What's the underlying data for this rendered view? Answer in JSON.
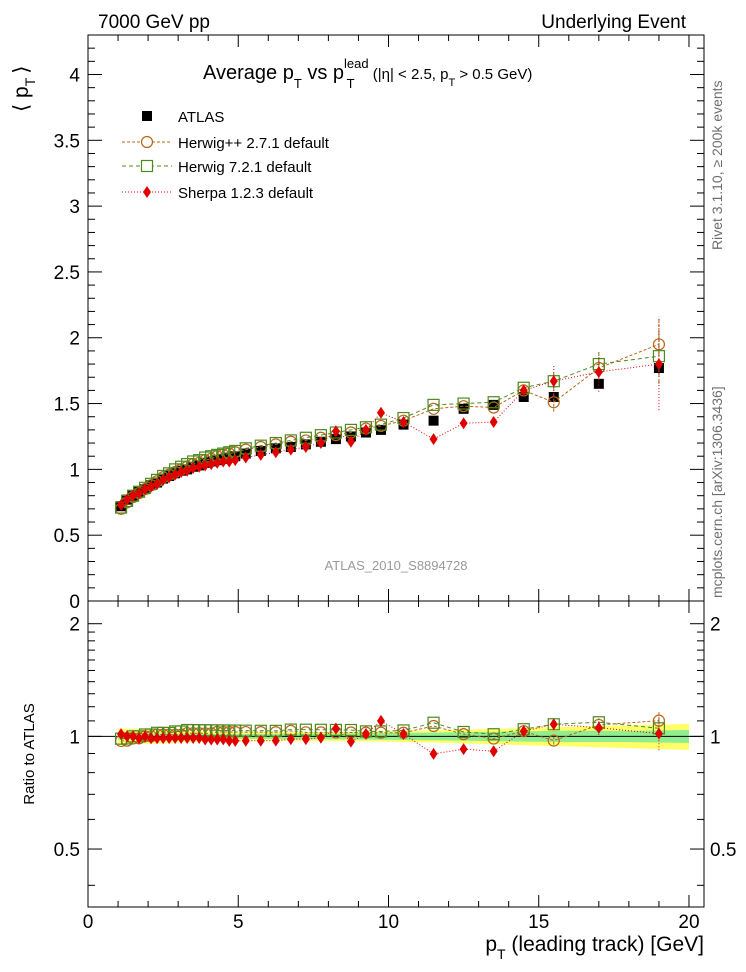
{
  "header": {
    "left": "7000 GeV pp",
    "right": "Underlying Event"
  },
  "side": {
    "rivet": "Rivet 3.1.10, ≥ 200k events",
    "mcplots": "mcplots.cern.ch [arXiv:1306.3436]"
  },
  "title": {
    "main": "Average p",
    "main_sub": "T",
    "vs": " vs p",
    "lead_sup": "lead",
    "lead_sub": "T",
    "cuts_a": " (|η| < 2.5, p",
    "cuts_sub": "T",
    "cuts_b": " > 0.5 GeV)"
  },
  "ylabel_main": {
    "left": "⟨ p",
    "sub": "T",
    "right": "⟩"
  },
  "ylabel_ratio": "Ratio to ATLAS",
  "xlabel": {
    "p": "p",
    "sub": "T",
    "rest": " (leading track) [GeV]"
  },
  "watermark": "ATLAS_2010_S8894728",
  "legend": [
    {
      "label": "ATLAS"
    },
    {
      "label": "Herwig++ 2.7.1 default"
    },
    {
      "label": "Herwig 7.2.1 default"
    },
    {
      "label": "Sherpa 1.2.3 default"
    }
  ],
  "colors": {
    "atlas": "#000000",
    "herwigpp": "#b8651a",
    "herwig7": "#4e8a1e",
    "sherpa": "#e00000",
    "band_inner": "#90ee90",
    "band_outer": "#ffff66"
  },
  "chart_data": [
    {
      "type": "scatter",
      "panel": "main",
      "title": "Average pT vs pT lead (|η| < 2.5, pT > 0.5 GeV)",
      "xlabel": "pT (leading track) [GeV]",
      "ylabel": "⟨ pT ⟩",
      "xlim": [
        0,
        20.5
      ],
      "ylim": [
        0,
        4.3
      ],
      "x_ticks": [
        0,
        5,
        10,
        15,
        20
      ],
      "y_ticks": [
        0,
        0.5,
        1,
        1.5,
        2,
        2.5,
        3,
        3.5,
        4
      ],
      "y_tick_labels": [
        "0",
        "0.5",
        "1",
        "1.5",
        "2",
        "2.5",
        "3",
        "3.5",
        "4"
      ],
      "x": [
        1.1,
        1.3,
        1.5,
        1.7,
        1.9,
        2.1,
        2.3,
        2.5,
        2.7,
        2.9,
        3.1,
        3.3,
        3.5,
        3.7,
        3.9,
        4.1,
        4.3,
        4.5,
        4.7,
        4.9,
        5.25,
        5.75,
        6.25,
        6.75,
        7.25,
        7.75,
        8.25,
        8.75,
        9.25,
        9.75,
        10.5,
        11.5,
        12.5,
        13.5,
        14.5,
        15.5,
        17.0,
        19.0
      ],
      "series": [
        {
          "name": "ATLAS",
          "values": [
            0.72,
            0.77,
            0.8,
            0.83,
            0.85,
            0.88,
            0.9,
            0.93,
            0.95,
            0.97,
            0.99,
            1.0,
            1.02,
            1.03,
            1.05,
            1.06,
            1.07,
            1.08,
            1.09,
            1.1,
            1.12,
            1.14,
            1.16,
            1.17,
            1.19,
            1.21,
            1.23,
            1.25,
            1.28,
            1.3,
            1.34,
            1.37,
            1.46,
            1.49,
            1.55,
            1.55,
            1.65,
            1.77
          ]
        },
        {
          "name": "Herwig++ 2.7.1 default",
          "values": [
            0.7,
            0.75,
            0.79,
            0.82,
            0.85,
            0.88,
            0.91,
            0.94,
            0.96,
            0.98,
            1.0,
            1.02,
            1.04,
            1.05,
            1.07,
            1.08,
            1.1,
            1.11,
            1.12,
            1.13,
            1.15,
            1.17,
            1.19,
            1.21,
            1.22,
            1.24,
            1.26,
            1.28,
            1.31,
            1.33,
            1.37,
            1.46,
            1.48,
            1.47,
            1.6,
            1.51,
            1.77,
            1.95
          ]
        },
        {
          "name": "Herwig 7.2.1 default",
          "values": [
            0.71,
            0.76,
            0.8,
            0.83,
            0.86,
            0.89,
            0.92,
            0.95,
            0.97,
            1.0,
            1.02,
            1.04,
            1.06,
            1.07,
            1.09,
            1.1,
            1.11,
            1.12,
            1.13,
            1.14,
            1.16,
            1.18,
            1.2,
            1.22,
            1.24,
            1.26,
            1.28,
            1.3,
            1.32,
            1.34,
            1.39,
            1.49,
            1.5,
            1.51,
            1.62,
            1.67,
            1.8,
            1.86
          ]
        },
        {
          "name": "Sherpa 1.2.3 default",
          "values": [
            0.73,
            0.77,
            0.8,
            0.82,
            0.85,
            0.87,
            0.89,
            0.92,
            0.94,
            0.96,
            0.98,
            0.99,
            1.01,
            1.02,
            1.03,
            1.04,
            1.05,
            1.06,
            1.06,
            1.07,
            1.09,
            1.11,
            1.13,
            1.15,
            1.17,
            1.2,
            1.29,
            1.21,
            1.3,
            1.43,
            1.36,
            1.23,
            1.35,
            1.36,
            1.6,
            1.67,
            1.74,
            1.8
          ]
        }
      ],
      "errors_high_x": [
        15.5,
        17.0,
        19.0
      ],
      "errors_half": [
        0.12,
        0.15,
        0.35
      ]
    },
    {
      "type": "scatter",
      "panel": "ratio",
      "ylabel": "Ratio to ATLAS",
      "xlim": [
        0,
        20.5
      ],
      "ylim": [
        0.35,
        2.3
      ],
      "y_ticks": [
        0.5,
        1,
        2
      ],
      "y_tick_labels": [
        "0.5",
        "1",
        "2"
      ],
      "x_tick_labels": [
        "0",
        "5",
        "10",
        "15",
        "20"
      ],
      "band_x": [
        1,
        5,
        9.5,
        12,
        14,
        16,
        18,
        20
      ],
      "band_inner_half": [
        0.02,
        0.015,
        0.02,
        0.025,
        0.03,
        0.035,
        0.035,
        0.04
      ],
      "band_outer_half": [
        0.05,
        0.025,
        0.03,
        0.04,
        0.05,
        0.06,
        0.07,
        0.08
      ]
    }
  ]
}
